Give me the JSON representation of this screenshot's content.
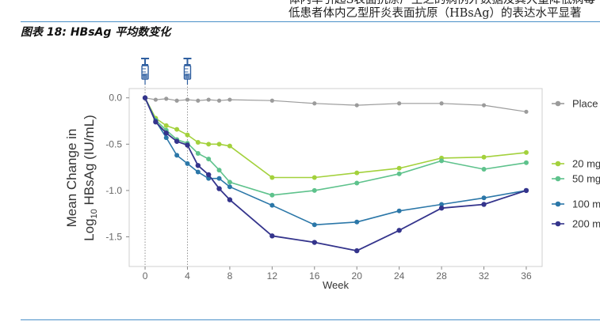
{
  "header": {
    "line1": "体内率引起S表面抗原产生之的病例外数据及其大量降低病毒",
    "line2": "低患者体内乙型肝炎表面抗原（HBsAg）的表达水平显著"
  },
  "figure_title": "图表 18:  HBsAg 平均数变化",
  "chart_data": {
    "type": "line",
    "xlabel": "Week",
    "ylabel_line1": "Mean Change in",
    "ylabel_line2_pre": "Log",
    "ylabel_line2_sub": "10",
    "ylabel_line2_post": " HBsAg (IU/mL)",
    "xlim": [
      -1.5,
      37.5
    ],
    "ylim": [
      -1.82,
      0.1
    ],
    "x_ticks": [
      0,
      4,
      8,
      12,
      16,
      20,
      24,
      28,
      32,
      36
    ],
    "y_ticks": [
      0.0,
      -0.5,
      -1.0,
      -1.5
    ],
    "y_tick_labels": [
      "0.0",
      "-0.5",
      "-1.0",
      "-1.5"
    ],
    "dose_markers_x": [
      0,
      4
    ],
    "series": [
      {
        "name": "Place",
        "color": "#9b9b9b",
        "stroke_width": 1.2,
        "marker_r": 2.6,
        "x": [
          0,
          1,
          2,
          3,
          4,
          5,
          6,
          7,
          8,
          12,
          16,
          20,
          24,
          28,
          32,
          36
        ],
        "y": [
          0.0,
          -0.02,
          -0.01,
          -0.03,
          -0.02,
          -0.03,
          -0.02,
          -0.03,
          -0.02,
          -0.03,
          -0.06,
          -0.08,
          -0.06,
          -0.06,
          -0.08,
          -0.15
        ]
      },
      {
        "name": "20 mg",
        "color": "#a3d13c",
        "stroke_width": 1.6,
        "marker_r": 3,
        "x": [
          0,
          1,
          2,
          3,
          4,
          5,
          6,
          7,
          8,
          12,
          16,
          20,
          24,
          28,
          32,
          36
        ],
        "y": [
          0.0,
          -0.22,
          -0.3,
          -0.34,
          -0.4,
          -0.48,
          -0.5,
          -0.5,
          -0.52,
          -0.86,
          -0.86,
          -0.81,
          -0.76,
          -0.65,
          -0.64,
          -0.59
        ]
      },
      {
        "name": "50 mg",
        "color": "#5ec28c",
        "stroke_width": 1.6,
        "marker_r": 3,
        "x": [
          0,
          1,
          2,
          3,
          4,
          5,
          6,
          7,
          8,
          12,
          16,
          20,
          24,
          28,
          32,
          36
        ],
        "y": [
          0.0,
          -0.24,
          -0.35,
          -0.45,
          -0.49,
          -0.6,
          -0.66,
          -0.78,
          -0.91,
          -1.05,
          -1.0,
          -0.92,
          -0.82,
          -0.68,
          -0.77,
          -0.7
        ]
      },
      {
        "name": "100 m",
        "color": "#2b77a8",
        "stroke_width": 1.6,
        "marker_r": 3,
        "x": [
          0,
          1,
          2,
          3,
          4,
          5,
          6,
          7,
          8,
          12,
          16,
          20,
          24,
          28,
          32,
          36
        ],
        "y": [
          0.0,
          -0.25,
          -0.43,
          -0.62,
          -0.71,
          -0.8,
          -0.87,
          -0.87,
          -0.96,
          -1.16,
          -1.37,
          -1.34,
          -1.22,
          -1.15,
          -1.08,
          -1.0
        ]
      },
      {
        "name": "200 m",
        "color": "#34348c",
        "stroke_width": 1.8,
        "marker_r": 3.2,
        "x": [
          0,
          1,
          2,
          3,
          4,
          5,
          6,
          7,
          8,
          12,
          16,
          20,
          24,
          28,
          32,
          36
        ],
        "y": [
          0.0,
          -0.26,
          -0.38,
          -0.47,
          -0.51,
          -0.73,
          -0.83,
          -0.98,
          -1.1,
          -1.49,
          -1.56,
          -1.65,
          -1.43,
          -1.19,
          -1.15,
          -1.0
        ]
      }
    ],
    "legend_position": "right"
  }
}
